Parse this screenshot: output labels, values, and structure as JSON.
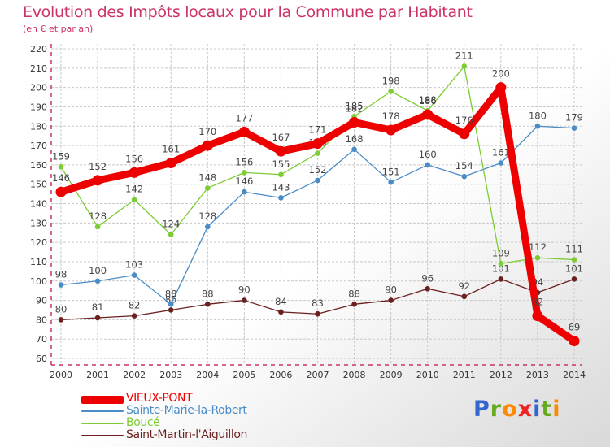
{
  "header": {
    "title": "Evolution des Impôts locaux pour la Commune par Habitant",
    "subtitle": "(en € et par an)"
  },
  "colors": {
    "title": "#cc3366",
    "axis": "#cc3366",
    "grid": "#c8c8c8"
  },
  "chart_data": {
    "type": "line",
    "x": [
      2000,
      2001,
      2002,
      2003,
      2004,
      2005,
      2006,
      2007,
      2008,
      2009,
      2010,
      2011,
      2012,
      2013,
      2014
    ],
    "ylim": [
      60,
      220
    ],
    "yticks": [
      60,
      70,
      80,
      90,
      100,
      110,
      120,
      130,
      140,
      150,
      160,
      170,
      180,
      190,
      200,
      210,
      220
    ],
    "grid": true,
    "legend_position": "bottom-left",
    "series": [
      {
        "name": "Saint-Martin-l'Aiguillon",
        "color": "#6b1f1f",
        "values": [
          80,
          81,
          82,
          85,
          88,
          90,
          84,
          83,
          88,
          90,
          96,
          92,
          101,
          94,
          101
        ],
        "labels": [
          "80",
          "81",
          "82",
          "85",
          "88",
          "90",
          "84",
          "83",
          "88",
          "90",
          "96",
          "92",
          "101",
          "94",
          "101"
        ]
      },
      {
        "name": "Sainte-Marie-la-Robert",
        "color": "#4a8cc7",
        "values": [
          98,
          100,
          103,
          88,
          128,
          146,
          143,
          152,
          168,
          151,
          160,
          154,
          161,
          180,
          179
        ],
        "labels": [
          "98",
          "100",
          "103",
          "88",
          "128",
          "146",
          "143",
          "152",
          "168",
          "151",
          "160",
          "154",
          "161",
          "180",
          "179"
        ]
      },
      {
        "name": "Boucé",
        "color": "#7dcc33",
        "values": [
          159,
          128,
          142,
          124,
          148,
          156,
          155,
          166,
          185,
          198,
          188,
          211,
          109,
          112,
          111
        ],
        "labels": [
          "159",
          "128",
          "142",
          "124",
          "148",
          "156",
          "155",
          "166",
          "185",
          "198",
          "188",
          "211",
          "109",
          "112",
          "111"
        ]
      },
      {
        "name": "VIEUX-PONT",
        "color": "#ee0000",
        "values": [
          146,
          152,
          156,
          161,
          170,
          177,
          167,
          171,
          182,
          178,
          186,
          176,
          200,
          82,
          69
        ],
        "labels": [
          "146",
          "152",
          "156",
          "161",
          "170",
          "177",
          "167",
          "171",
          "182",
          "178",
          "186",
          "176",
          "200",
          "82",
          "69"
        ]
      }
    ]
  },
  "legend": {
    "items": [
      {
        "label": "VIEUX-PONT",
        "color": "#ee0000"
      },
      {
        "label": "Sainte-Marie-la-Robert",
        "color": "#4a8cc7"
      },
      {
        "label": "Boucé",
        "color": "#7dcc33"
      },
      {
        "label": "Saint-Martin-l'Aiguillon",
        "color": "#6b1f1f"
      }
    ]
  },
  "brand": {
    "letters": [
      "P",
      "r",
      "o",
      "x",
      "i",
      "t",
      "i"
    ],
    "colors": [
      "#3366cc",
      "#66aa22",
      "#ff8800",
      "#ee2222",
      "#3366cc",
      "#66aa22",
      "#ff8800"
    ]
  }
}
